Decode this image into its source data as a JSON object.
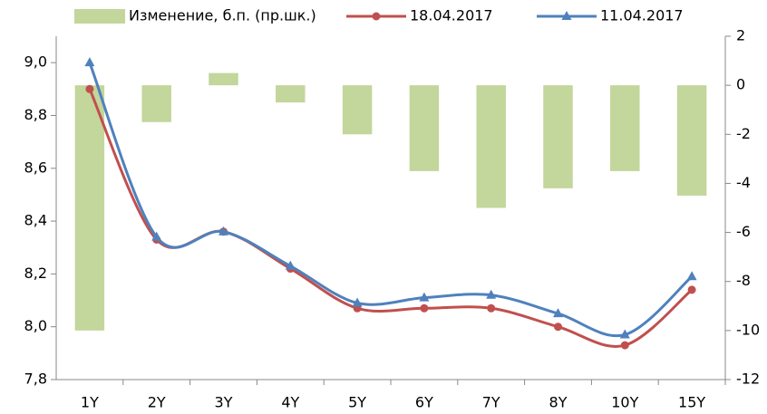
{
  "chart_data": {
    "type": "bar+line",
    "categories": [
      "1Y",
      "2Y",
      "3Y",
      "4Y",
      "5Y",
      "6Y",
      "7Y",
      "8Y",
      "10Y",
      "15Y"
    ],
    "series": [
      {
        "name": "Изменение, б.п. (пр.шк.)",
        "type": "bar",
        "axis": "y2",
        "color": "#c3d69b",
        "values": [
          -10,
          -1.5,
          0.5,
          -0.7,
          -2,
          -3.5,
          -5,
          -4.2,
          -3.5,
          -4.5
        ]
      },
      {
        "name": "18.04.2017",
        "type": "line",
        "marker": "circle",
        "color": "#c0504d",
        "values": [
          8.9,
          8.33,
          8.36,
          8.22,
          8.07,
          8.07,
          8.07,
          8.0,
          7.93,
          8.14
        ]
      },
      {
        "name": "11.04.2017",
        "type": "line",
        "marker": "triangle",
        "color": "#4f81bd",
        "values": [
          9.0,
          8.34,
          8.36,
          8.23,
          8.09,
          8.11,
          8.12,
          8.05,
          7.97,
          8.19
        ]
      }
    ],
    "ylim": [
      7.8,
      9.1
    ],
    "yticks": [
      {
        "value": 7.8,
        "label": "7,8"
      },
      {
        "value": 8.0,
        "label": "8,0"
      },
      {
        "value": 8.2,
        "label": "8,2"
      },
      {
        "value": 8.4,
        "label": "8,4"
      },
      {
        "value": 8.6,
        "label": "8,6"
      },
      {
        "value": 8.8,
        "label": "8,8"
      },
      {
        "value": 9.0,
        "label": "9,0"
      }
    ],
    "y2lim": [
      -12,
      2
    ],
    "y2ticks": [
      -12,
      -10,
      -8,
      -6,
      -4,
      -2,
      0,
      2
    ],
    "legend": "top"
  }
}
